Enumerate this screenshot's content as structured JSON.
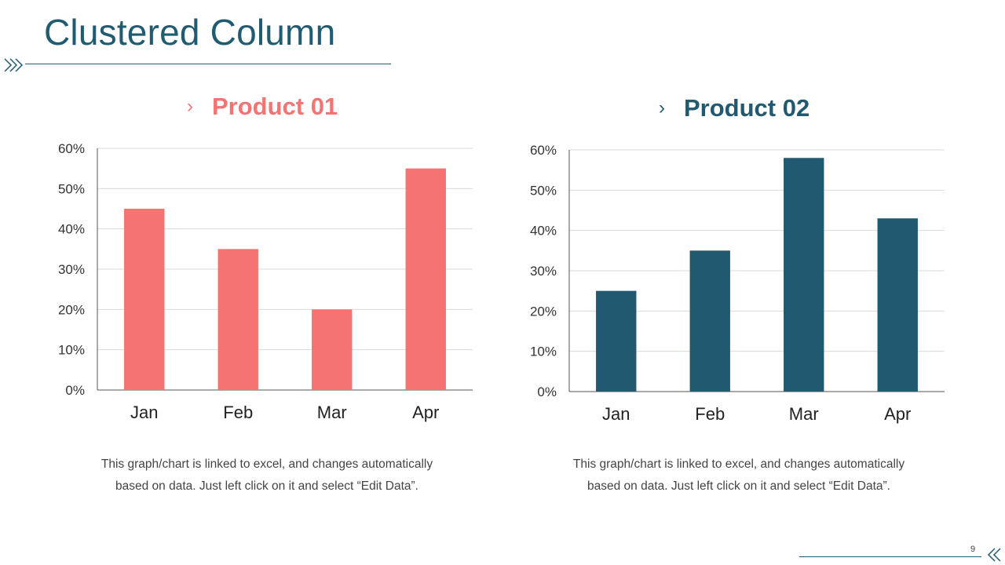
{
  "slide": {
    "title": "Clustered Column",
    "page_number": "9"
  },
  "colors": {
    "title": "#1f5c72",
    "product1": "#f57373",
    "product2": "#215a70",
    "axis": "#555555",
    "grid": "#d9d9d9",
    "text": "#444444"
  },
  "icons": {
    "header_chevrons": "double-chevron-right-icon",
    "footer_chevrons": "double-chevron-left-icon",
    "heading_bullet": "chevron-right-icon"
  },
  "panels": [
    {
      "heading": "Product 01",
      "bullet": "›",
      "caption_line1": "This graph/chart is linked to excel, and changes automatically",
      "caption_line2": "based on data. Just left click on it and select “Edit Data”."
    },
    {
      "heading": "Product 02",
      "bullet": "›",
      "caption_line1": "This graph/chart is linked to excel, and changes automatically",
      "caption_line2": "based on data. Just left click on it and select “Edit Data”."
    }
  ],
  "chart_data": [
    {
      "type": "bar",
      "title": "Product 01",
      "categories": [
        "Jan",
        "Feb",
        "Mar",
        "Apr"
      ],
      "values": [
        0.45,
        0.35,
        0.2,
        0.55
      ],
      "ylim": [
        0,
        0.6
      ],
      "yticks": [
        "0%",
        "10%",
        "20%",
        "30%",
        "40%",
        "50%",
        "60%"
      ],
      "grid": true,
      "color": "#f57373"
    },
    {
      "type": "bar",
      "title": "Product 02",
      "categories": [
        "Jan",
        "Feb",
        "Mar",
        "Apr"
      ],
      "values": [
        0.25,
        0.35,
        0.58,
        0.43
      ],
      "ylim": [
        0,
        0.6
      ],
      "yticks": [
        "0%",
        "10%",
        "20%",
        "30%",
        "40%",
        "50%",
        "60%"
      ],
      "grid": true,
      "color": "#215a70"
    }
  ]
}
